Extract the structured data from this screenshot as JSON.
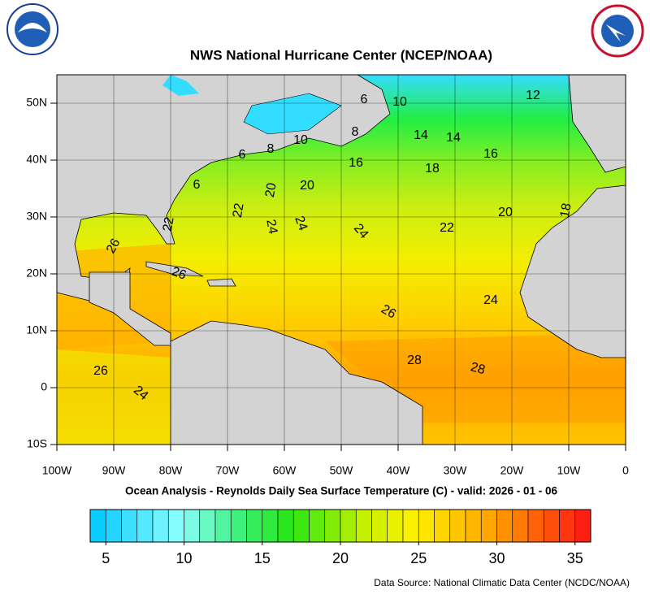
{
  "title": "NWS National Hurricane Center (NCEP/NOAA)",
  "subtitle": "Ocean Analysis - Reynolds Daily Sea Surface Temperature (C) - valid: 2026 - 01 - 06",
  "source": "Data Source: National Climatic Data Center (NCDC/NOAA)",
  "map": {
    "xlim": [
      -100,
      0
    ],
    "ylim": [
      -10,
      55
    ],
    "xticks": [
      {
        "value": -100,
        "label": "100W"
      },
      {
        "value": -90,
        "label": "90W"
      },
      {
        "value": -80,
        "label": "80W"
      },
      {
        "value": -70,
        "label": "70W"
      },
      {
        "value": -60,
        "label": "60W"
      },
      {
        "value": -50,
        "label": "50W"
      },
      {
        "value": -40,
        "label": "40W"
      },
      {
        "value": -30,
        "label": "30W"
      },
      {
        "value": -20,
        "label": "20W"
      },
      {
        "value": -10,
        "label": "10W"
      },
      0
    ],
    "yticks": [
      {
        "value": -10,
        "label": "10S"
      },
      0,
      {
        "value": 10,
        "label": "10N"
      },
      {
        "value": 20,
        "label": "20N"
      },
      {
        "value": 30,
        "label": "30N"
      },
      {
        "value": 40,
        "label": "40N"
      },
      {
        "value": 50,
        "label": "50N"
      }
    ],
    "contour_labels": [
      6,
      10,
      12,
      8,
      14,
      14,
      10,
      8,
      6,
      16,
      16,
      18,
      20,
      20,
      6,
      22,
      22,
      24,
      24,
      24,
      22,
      20,
      18,
      26,
      26,
      26,
      24,
      28,
      28,
      26,
      24
    ]
  },
  "colorbar": {
    "lim": [
      4,
      36
    ],
    "ticks": [
      5,
      10,
      15,
      20,
      25,
      30,
      35
    ]
  }
}
